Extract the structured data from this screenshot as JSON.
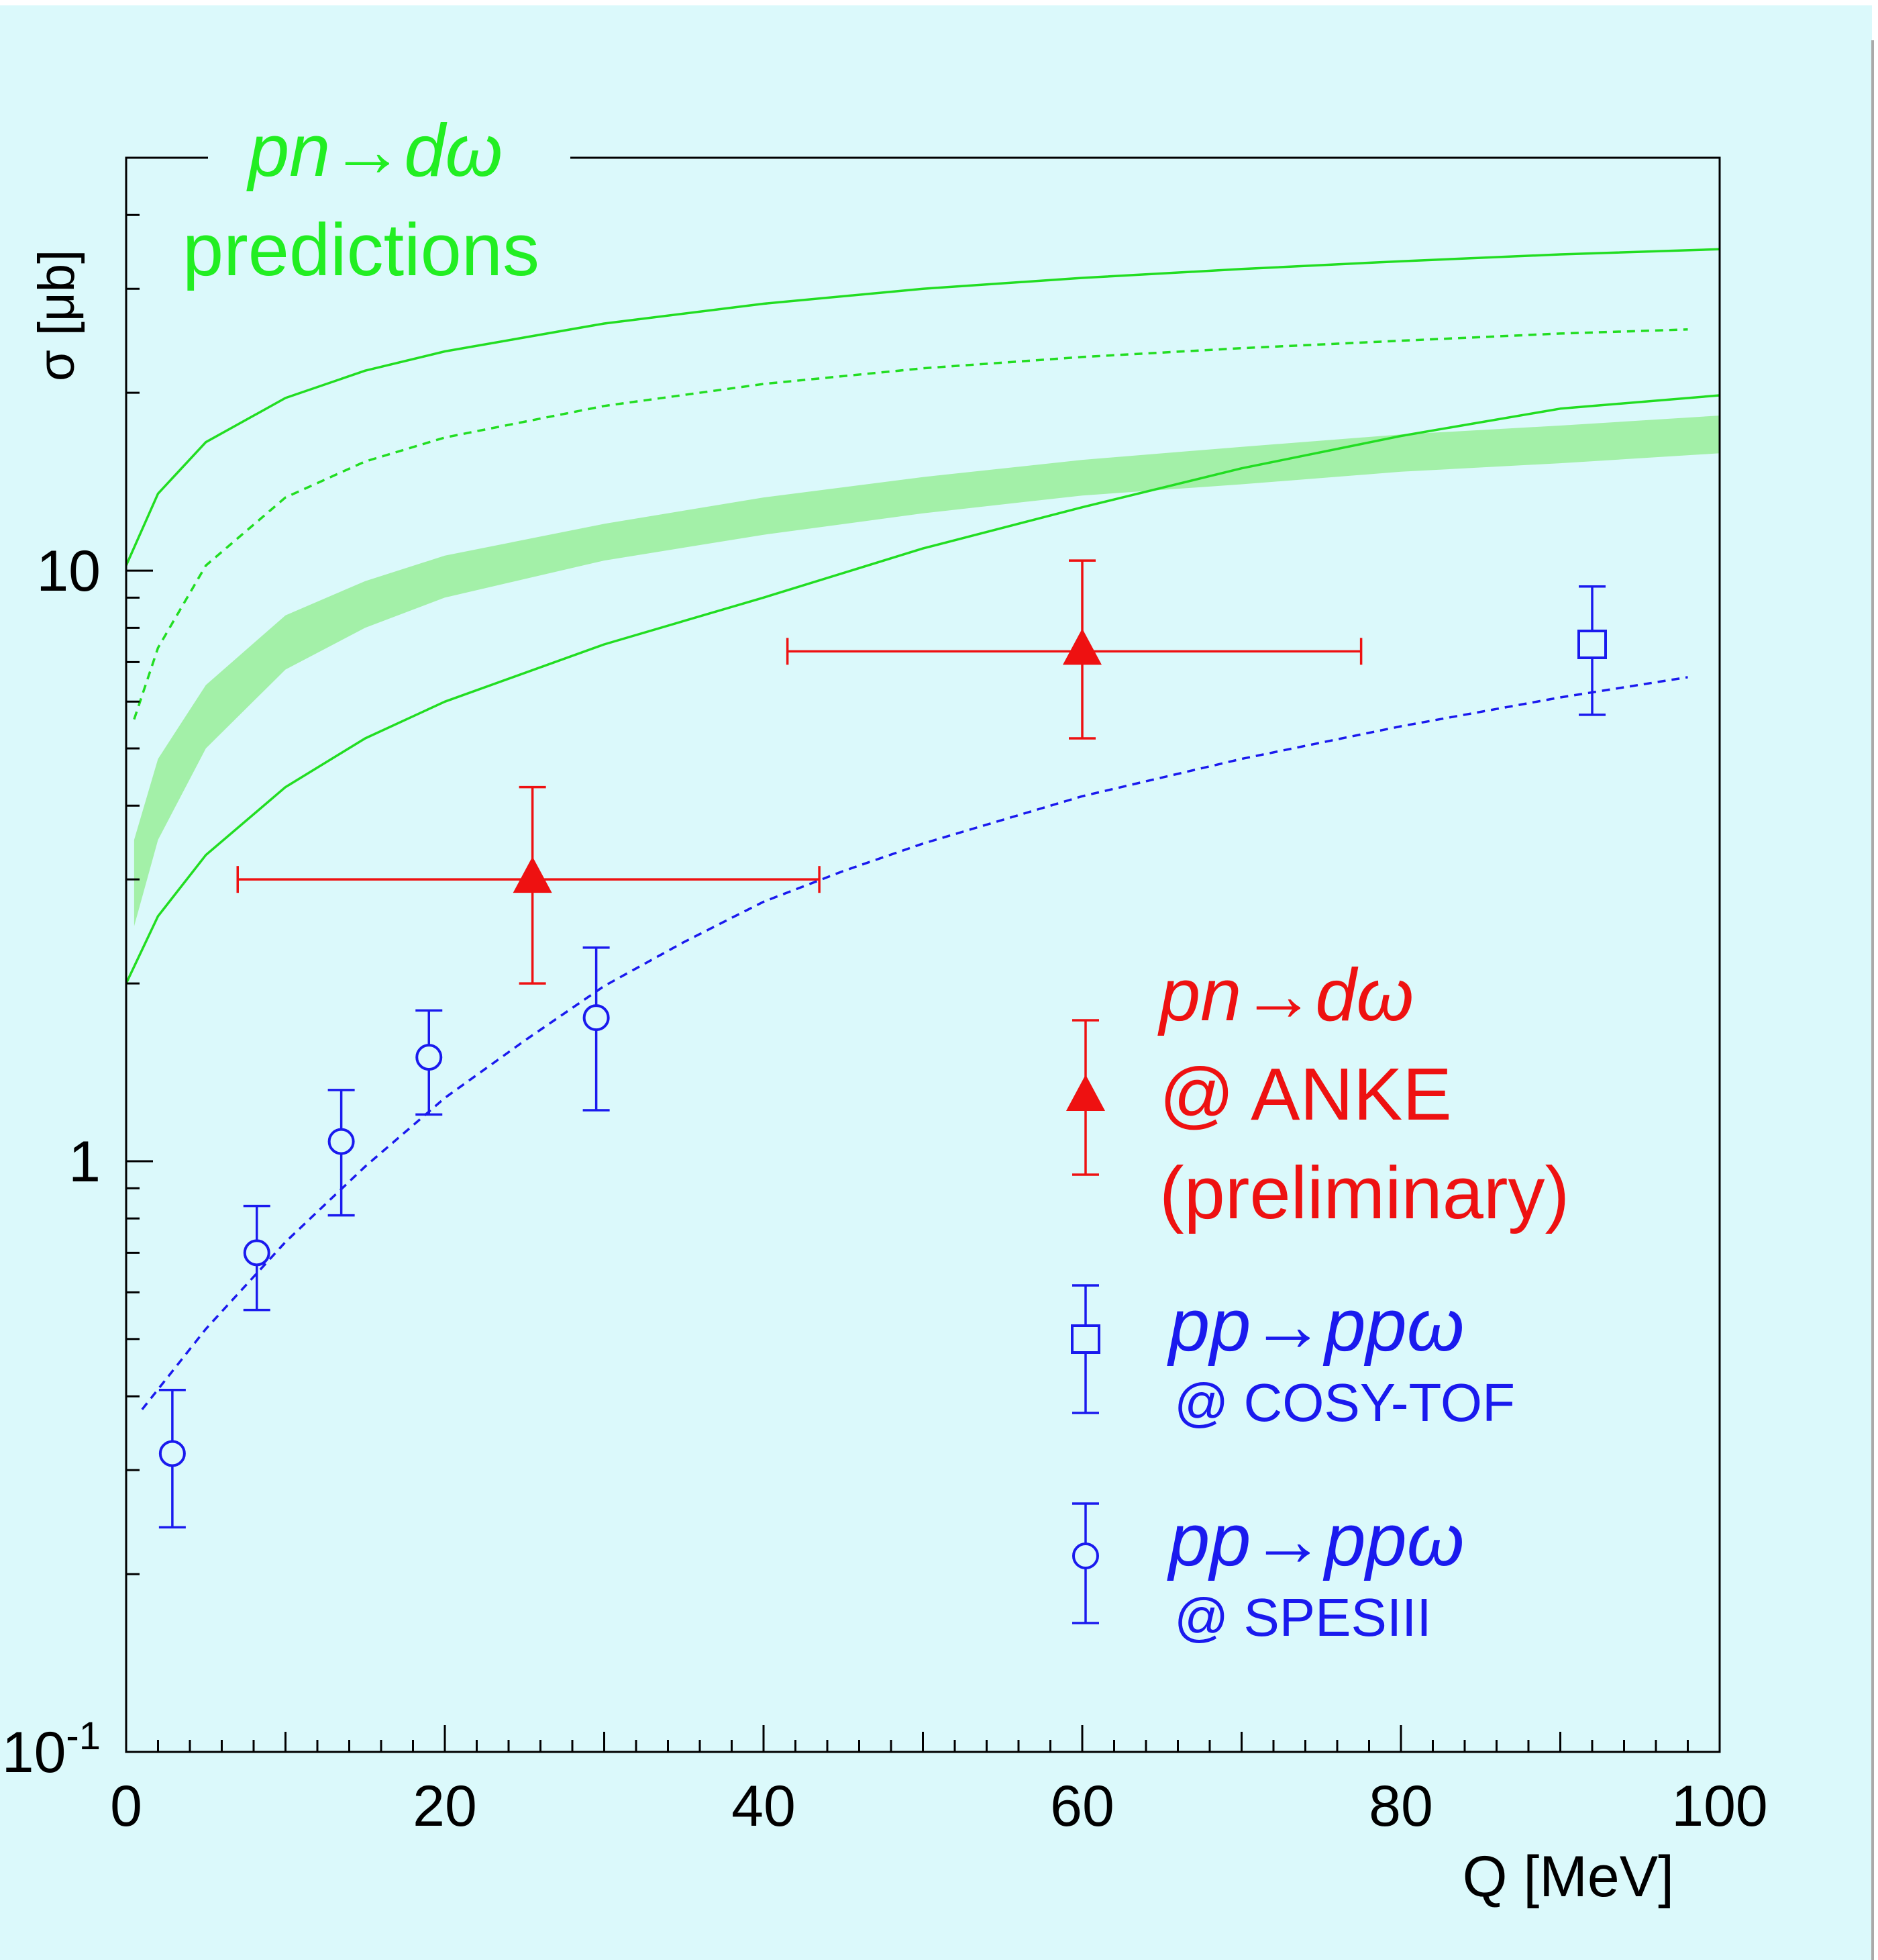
{
  "chart_data": {
    "type": "scatter",
    "title": "",
    "xlabel": "Q [MeV]",
    "ylabel": "σ [μb]",
    "xlim": [
      0,
      100
    ],
    "ylim": [
      0.1,
      50
    ],
    "yscale": "log",
    "grid": false,
    "x_ticks": [
      "0",
      "20",
      "40",
      "60",
      "80",
      "100"
    ],
    "y_ticks": [
      {
        "value": 10,
        "label": "10"
      },
      {
        "value": 1,
        "label": "1"
      },
      {
        "value": 0.1,
        "label": "10",
        "sup": "-1"
      }
    ],
    "predictions_label": {
      "line1": "pn→dω",
      "line2": "predictions",
      "color": "#22ee22"
    },
    "prediction_curves": [
      {
        "style": "solid",
        "color": "#22dd22",
        "x": [
          0,
          2,
          5,
          10,
          15,
          20,
          30,
          40,
          50,
          60,
          70,
          80,
          90,
          100
        ],
        "y": [
          10.2,
          13.5,
          16.5,
          19.6,
          21.8,
          23.5,
          26.2,
          28.3,
          30.0,
          31.3,
          32.4,
          33.4,
          34.3,
          35.0
        ]
      },
      {
        "style": "dashed",
        "color": "#22dd22",
        "x": [
          0.5,
          2,
          5,
          10,
          15,
          20,
          30,
          40,
          50,
          60,
          70,
          80,
          90,
          98
        ],
        "y": [
          5.6,
          7.4,
          10.2,
          13.3,
          15.3,
          16.8,
          19.0,
          20.7,
          22.0,
          23.0,
          23.8,
          24.5,
          25.2,
          25.6
        ]
      },
      {
        "style": "solid",
        "color": "#22dd22",
        "x": [
          0,
          2,
          5,
          10,
          15,
          20,
          30,
          40,
          50,
          60,
          70,
          80,
          90,
          100
        ],
        "y": [
          2.0,
          2.6,
          3.3,
          4.3,
          5.2,
          6.0,
          7.5,
          9.0,
          10.9,
          12.8,
          14.9,
          16.9,
          18.8,
          19.8
        ]
      },
      {
        "style": "dashed",
        "color": "#1a1aee",
        "x": [
          1,
          5,
          10,
          15,
          20,
          25,
          30,
          35,
          40,
          45,
          50,
          60,
          70,
          80,
          90,
          98
        ],
        "y": [
          0.38,
          0.52,
          0.73,
          0.98,
          1.28,
          1.6,
          1.98,
          2.35,
          2.75,
          3.1,
          3.45,
          4.15,
          4.8,
          5.45,
          6.1,
          6.6
        ]
      }
    ],
    "prediction_band": {
      "color": "#99ee99",
      "x": [
        0.5,
        2,
        5,
        10,
        15,
        20,
        30,
        40,
        50,
        60,
        70,
        80,
        90,
        100
      ],
      "y_low": [
        2.5,
        3.5,
        5.0,
        6.8,
        8.0,
        9.0,
        10.4,
        11.5,
        12.5,
        13.4,
        14.0,
        14.7,
        15.2,
        15.8
      ],
      "y_high": [
        3.5,
        4.8,
        6.4,
        8.4,
        9.6,
        10.6,
        12.0,
        13.3,
        14.4,
        15.4,
        16.2,
        17.0,
        17.6,
        18.3
      ]
    },
    "series": [
      {
        "name": "pn→dω",
        "subtitle": "@ ANKE",
        "note": "(preliminary)",
        "color": "#ee1111",
        "marker": "triangle",
        "points": [
          {
            "x": 25.5,
            "y": 3.0,
            "xerr": [
              7,
              43.5
            ],
            "yerr": [
              2.0,
              4.3
            ]
          },
          {
            "x": 60,
            "y": 7.3,
            "xerr": [
              41.5,
              77.5
            ],
            "yerr": [
              5.2,
              10.4
            ]
          }
        ]
      },
      {
        "name": "pp→ppω",
        "subtitle": "@ COSY-TOF",
        "color": "#1a1aee",
        "marker": "square",
        "points": [
          {
            "x": 92,
            "y": 7.5,
            "yerr": [
              5.7,
              9.4
            ]
          }
        ]
      },
      {
        "name": "pp→ppω",
        "subtitle": "@ SPESIII",
        "color": "#1a1aee",
        "marker": "circle",
        "points": [
          {
            "x": 2.9,
            "y": 0.32,
            "yerr": [
              0.24,
              0.41
            ]
          },
          {
            "x": 8.2,
            "y": 0.7,
            "yerr": [
              0.56,
              0.84
            ]
          },
          {
            "x": 13.5,
            "y": 1.08,
            "yerr": [
              0.81,
              1.32
            ]
          },
          {
            "x": 19,
            "y": 1.5,
            "yerr": [
              1.2,
              1.8
            ]
          },
          {
            "x": 29.5,
            "y": 1.75,
            "yerr": [
              1.22,
              2.3
            ]
          }
        ]
      }
    ],
    "colors": {
      "background": "#dbf9fb",
      "frame": "#000000"
    }
  }
}
